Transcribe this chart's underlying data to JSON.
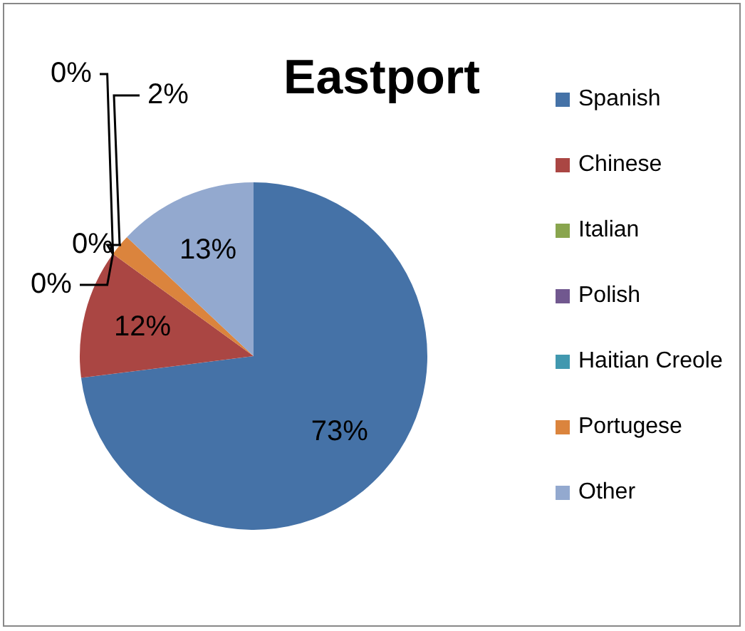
{
  "chart_data": {
    "type": "pie",
    "title": "Eastport",
    "categories": [
      "Spanish",
      "Chinese",
      "Italian",
      "Polish",
      "Haitian Creole",
      "Portugese",
      "Other"
    ],
    "values": [
      73,
      12,
      0,
      0,
      0,
      2,
      13
    ],
    "value_labels": [
      "73%",
      "12%",
      "0%",
      "0%",
      "0%",
      "2%",
      "13%"
    ],
    "colors": [
      "#4572a7",
      "#aa4643",
      "#89a54e",
      "#71588f",
      "#4198af",
      "#db843d",
      "#93a9cf"
    ],
    "legend": "right"
  }
}
